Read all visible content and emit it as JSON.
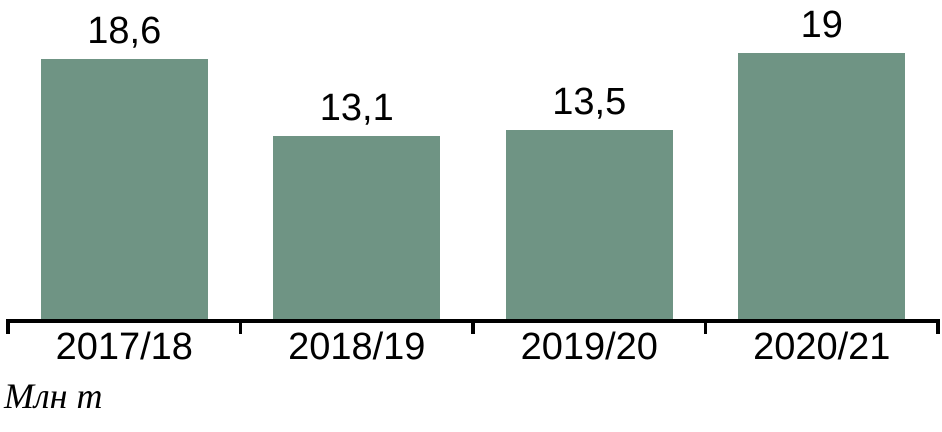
{
  "chart_data": {
    "type": "bar",
    "categories": [
      "2017/18",
      "2018/19",
      "2019/20",
      "2020/21"
    ],
    "values": [
      18.6,
      13.1,
      13.5,
      19
    ],
    "value_labels": [
      "18,6",
      "13,1",
      "13,5",
      "19"
    ],
    "title": "",
    "xlabel": "",
    "ylabel": "Млн т",
    "ylim": [
      0,
      22.8
    ],
    "grid": false,
    "legend": false,
    "bar_color": "#6F9484",
    "axis_color": "#000000",
    "text_color": "#000000"
  }
}
